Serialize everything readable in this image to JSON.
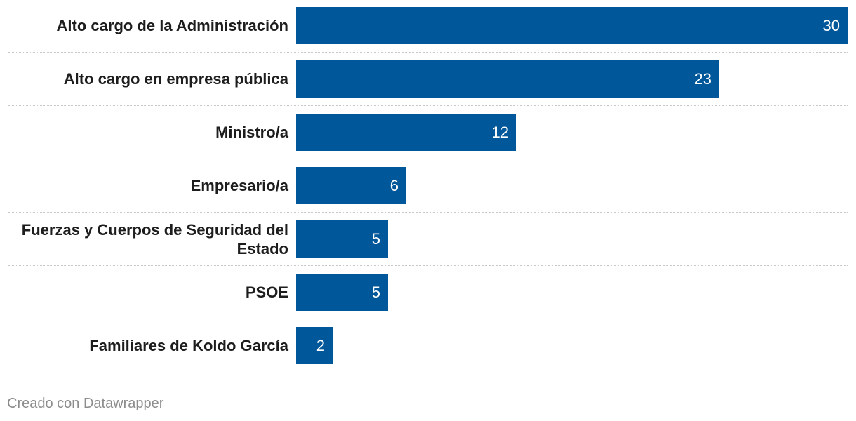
{
  "chart_data": {
    "type": "bar",
    "orientation": "horizontal",
    "categories": [
      "Alto cargo de la Administración",
      "Alto cargo en empresa pública",
      "Ministro/a",
      "Empresario/a",
      "Fuerzas y Cuerpos de Seguridad del Estado",
      "PSOE",
      "Familiares de Koldo García"
    ],
    "values": [
      30,
      23,
      12,
      6,
      5,
      5,
      2
    ],
    "xlim": [
      0,
      30
    ],
    "bar_color": "#00579a",
    "grid": false
  },
  "footer": {
    "credit": "Creado con Datawrapper"
  }
}
